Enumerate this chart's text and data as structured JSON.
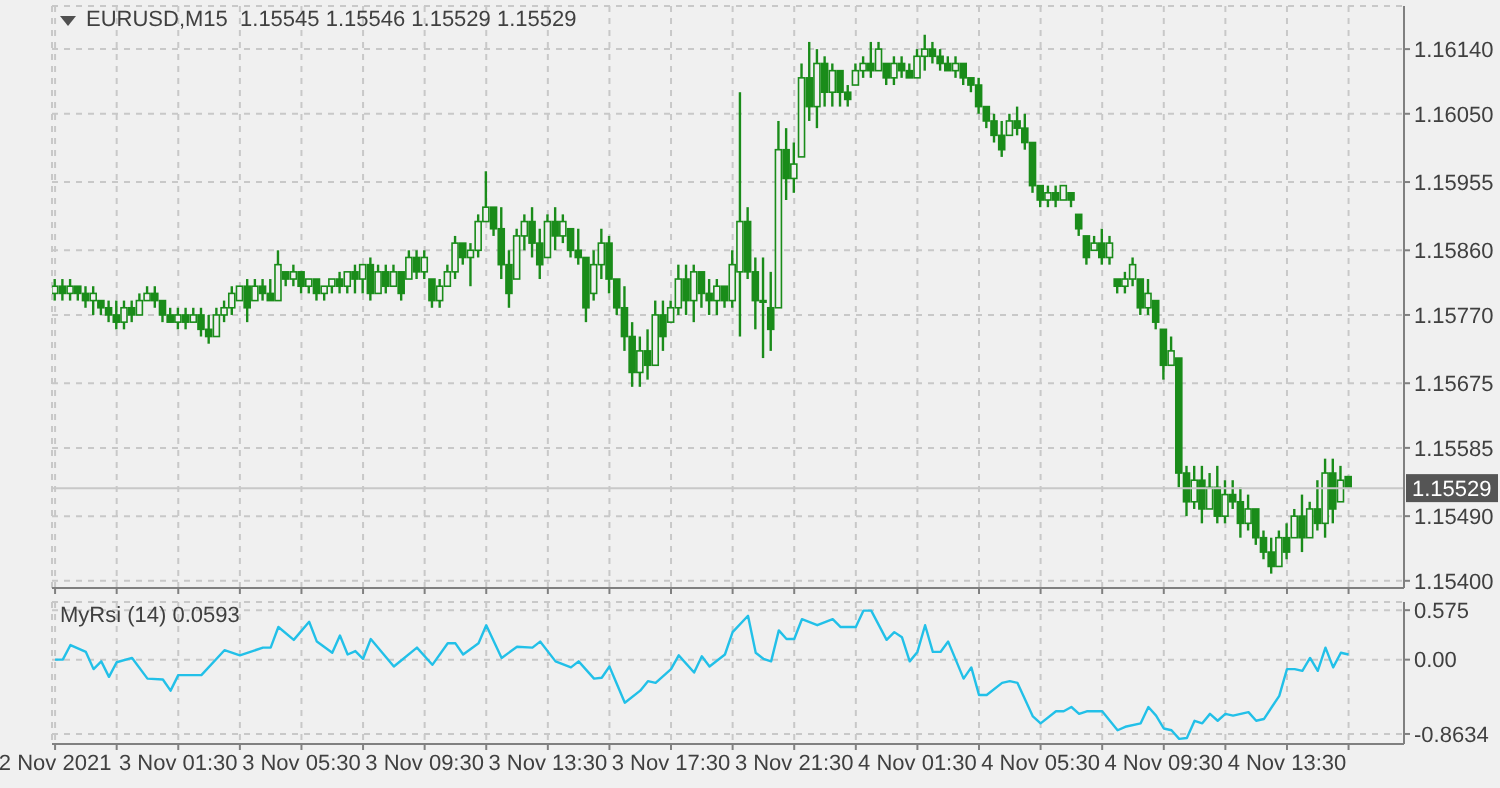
{
  "chart_data": [
    {
      "type": "candlestick",
      "title": "EURUSD,M15  1.15545 1.15546 1.15529 1.15529",
      "color": "#1a8c1a",
      "x": [
        "2021-11-02T21:30",
        "2021-11-02T21:45",
        "2021-11-02T22:00",
        "2021-11-02T22:15",
        "2021-11-02T22:30",
        "2021-11-02T22:45",
        "2021-11-02T23:00",
        "2021-11-02T23:15",
        "2021-11-02T23:30",
        "2021-11-02T23:45",
        "2021-11-03T00:00",
        "2021-11-03T00:15",
        "2021-11-03T00:30",
        "2021-11-03T00:45",
        "2021-11-03T01:00",
        "2021-11-03T01:15",
        "2021-11-03T01:30",
        "2021-11-03T01:45",
        "2021-11-03T02:00",
        "2021-11-03T02:15",
        "2021-11-03T02:30",
        "2021-11-03T02:45",
        "2021-11-03T03:00",
        "2021-11-03T03:15",
        "2021-11-03T03:30",
        "2021-11-03T03:45",
        "2021-11-03T04:00",
        "2021-11-03T04:15",
        "2021-11-03T04:30",
        "2021-11-03T04:45",
        "2021-11-03T05:00",
        "2021-11-03T05:15",
        "2021-11-03T05:30",
        "2021-11-03T05:45",
        "2021-11-03T06:00",
        "2021-11-03T06:15",
        "2021-11-03T06:30",
        "2021-11-03T06:45",
        "2021-11-03T07:00",
        "2021-11-03T07:15",
        "2021-11-03T07:30",
        "2021-11-03T07:45",
        "2021-11-03T08:00",
        "2021-11-03T08:15",
        "2021-11-03T08:30",
        "2021-11-03T08:45",
        "2021-11-03T09:00",
        "2021-11-03T09:15",
        "2021-11-03T09:30",
        "2021-11-03T09:45",
        "2021-11-03T10:00",
        "2021-11-03T10:15",
        "2021-11-03T10:30",
        "2021-11-03T10:45",
        "2021-11-03T11:00",
        "2021-11-03T11:15",
        "2021-11-03T11:30",
        "2021-11-03T11:45",
        "2021-11-03T12:00",
        "2021-11-03T12:15",
        "2021-11-03T12:30",
        "2021-11-03T12:45",
        "2021-11-03T13:00",
        "2021-11-03T13:15",
        "2021-11-03T13:30",
        "2021-11-03T13:45",
        "2021-11-03T14:00",
        "2021-11-03T14:15",
        "2021-11-03T14:30",
        "2021-11-03T14:45",
        "2021-11-03T15:00",
        "2021-11-03T15:15",
        "2021-11-03T15:30",
        "2021-11-03T15:45",
        "2021-11-03T16:00",
        "2021-11-03T16:15",
        "2021-11-03T16:30",
        "2021-11-03T16:45",
        "2021-11-03T17:00",
        "2021-11-03T17:15",
        "2021-11-03T17:30",
        "2021-11-03T17:45",
        "2021-11-03T18:00",
        "2021-11-03T18:15",
        "2021-11-03T18:30",
        "2021-11-03T18:45",
        "2021-11-03T19:00",
        "2021-11-03T19:15",
        "2021-11-03T19:30",
        "2021-11-03T19:45",
        "2021-11-03T20:00",
        "2021-11-03T20:15",
        "2021-11-03T20:30",
        "2021-11-03T20:45",
        "2021-11-03T21:00",
        "2021-11-03T21:15",
        "2021-11-03T21:30",
        "2021-11-03T21:45",
        "2021-11-03T22:00",
        "2021-11-03T22:15",
        "2021-11-03T22:30",
        "2021-11-03T22:45",
        "2021-11-03T23:00",
        "2021-11-03T23:15",
        "2021-11-03T23:30",
        "2021-11-03T23:45",
        "2021-11-04T00:00",
        "2021-11-04T00:15",
        "2021-11-04T00:30",
        "2021-11-04T00:45",
        "2021-11-04T01:00",
        "2021-11-04T01:15",
        "2021-11-04T01:30",
        "2021-11-04T01:45",
        "2021-11-04T02:00",
        "2021-11-04T02:15",
        "2021-11-04T02:30",
        "2021-11-04T02:45",
        "2021-11-04T03:00",
        "2021-11-04T03:15",
        "2021-11-04T03:30",
        "2021-11-04T03:45",
        "2021-11-04T04:00",
        "2021-11-04T04:15",
        "2021-11-04T04:30",
        "2021-11-04T04:45",
        "2021-11-04T05:00",
        "2021-11-04T05:15",
        "2021-11-04T05:30",
        "2021-11-04T05:45",
        "2021-11-04T06:00",
        "2021-11-04T06:15",
        "2021-11-04T06:30",
        "2021-11-04T06:45",
        "2021-11-04T07:00",
        "2021-11-04T07:15",
        "2021-11-04T07:30",
        "2021-11-04T07:45",
        "2021-11-04T08:00",
        "2021-11-04T08:15",
        "2021-11-04T08:30",
        "2021-11-04T08:45",
        "2021-11-04T09:00",
        "2021-11-04T09:15",
        "2021-11-04T09:30",
        "2021-11-04T09:45",
        "2021-11-04T10:00",
        "2021-11-04T10:15",
        "2021-11-04T10:30",
        "2021-11-04T10:45",
        "2021-11-04T11:00",
        "2021-11-04T11:15",
        "2021-11-04T11:30",
        "2021-11-04T11:45",
        "2021-11-04T12:00",
        "2021-11-04T12:15",
        "2021-11-04T12:30",
        "2021-11-04T12:45",
        "2021-11-04T13:00",
        "2021-11-04T13:15",
        "2021-11-04T13:30",
        "2021-11-04T13:45",
        "2021-11-04T14:00",
        "2021-11-04T14:15",
        "2021-11-04T14:30",
        "2021-11-04T14:45",
        "2021-11-04T15:00",
        "2021-11-04T15:15",
        "2021-11-04T15:30"
      ],
      "ohlc": [
        [
          1.158,
          1.1582,
          1.1579,
          1.1581
        ],
        [
          1.1581,
          1.1582,
          1.1579,
          1.158
        ],
        [
          1.158,
          1.1582,
          1.1579,
          1.1581
        ],
        [
          1.1581,
          1.1581,
          1.1579,
          1.158
        ],
        [
          1.158,
          1.1581,
          1.1578,
          1.1579
        ],
        [
          1.1579,
          1.1581,
          1.1577,
          1.158
        ],
        [
          1.1579,
          1.1579,
          1.1577,
          1.1578
        ],
        [
          1.1578,
          1.1579,
          1.1576,
          1.1577
        ],
        [
          1.1577,
          1.1579,
          1.1575,
          1.1576
        ],
        [
          1.1576,
          1.1579,
          1.1575,
          1.1578
        ],
        [
          1.1578,
          1.1579,
          1.1576,
          1.1577
        ],
        [
          1.1577,
          1.158,
          1.1577,
          1.1579
        ],
        [
          1.1579,
          1.1581,
          1.1579,
          1.158
        ],
        [
          1.158,
          1.1581,
          1.1578,
          1.1579
        ],
        [
          1.1579,
          1.1579,
          1.1576,
          1.1577
        ],
        [
          1.1577,
          1.1578,
          1.1576,
          1.1576
        ],
        [
          1.1576,
          1.1578,
          1.1575,
          1.1577
        ],
        [
          1.1577,
          1.1578,
          1.1575,
          1.1576
        ],
        [
          1.1576,
          1.1578,
          1.1576,
          1.1577
        ],
        [
          1.1577,
          1.1578,
          1.1574,
          1.1575
        ],
        [
          1.1575,
          1.1577,
          1.1573,
          1.1574
        ],
        [
          1.1574,
          1.1578,
          1.1574,
          1.1577
        ],
        [
          1.1577,
          1.1579,
          1.1576,
          1.1578
        ],
        [
          1.1578,
          1.1581,
          1.1577,
          1.158
        ],
        [
          1.1579,
          1.1581,
          1.1579,
          1.1581
        ],
        [
          1.1581,
          1.1582,
          1.1576,
          1.1578
        ],
        [
          1.1579,
          1.1582,
          1.1579,
          1.1581
        ],
        [
          1.1581,
          1.1582,
          1.1579,
          1.158
        ],
        [
          1.158,
          1.1582,
          1.1579,
          1.1579
        ],
        [
          1.1579,
          1.1586,
          1.1579,
          1.1584
        ],
        [
          1.1583,
          1.1583,
          1.1581,
          1.1582
        ],
        [
          1.1582,
          1.1584,
          1.1581,
          1.1583
        ],
        [
          1.1583,
          1.1583,
          1.158,
          1.1581
        ],
        [
          1.1581,
          1.1582,
          1.158,
          1.1582
        ],
        [
          1.1582,
          1.1582,
          1.1579,
          1.158
        ],
        [
          1.158,
          1.1581,
          1.1579,
          1.1581
        ],
        [
          1.1581,
          1.1582,
          1.158,
          1.1582
        ],
        [
          1.1582,
          1.1583,
          1.158,
          1.1581
        ],
        [
          1.1581,
          1.1583,
          1.158,
          1.1583
        ],
        [
          1.1583,
          1.1584,
          1.158,
          1.1582
        ],
        [
          1.1582,
          1.1584,
          1.158,
          1.1584
        ],
        [
          1.1584,
          1.1585,
          1.1579,
          1.158
        ],
        [
          1.158,
          1.1584,
          1.158,
          1.1583
        ],
        [
          1.1583,
          1.1584,
          1.158,
          1.1581
        ],
        [
          1.1581,
          1.1584,
          1.1581,
          1.1583
        ],
        [
          1.1583,
          1.1583,
          1.1579,
          1.158
        ],
        [
          1.1582,
          1.1586,
          1.1582,
          1.1585
        ],
        [
          1.1585,
          1.1586,
          1.1582,
          1.1583
        ],
        [
          1.1583,
          1.1586,
          1.1582,
          1.1585
        ],
        [
          1.1582,
          1.1582,
          1.1578,
          1.1579
        ],
        [
          1.1579,
          1.1582,
          1.1578,
          1.1581
        ],
        [
          1.1581,
          1.1584,
          1.1581,
          1.1583
        ],
        [
          1.1583,
          1.1588,
          1.1582,
          1.1587
        ],
        [
          1.1587,
          1.1587,
          1.1584,
          1.1585
        ],
        [
          1.1585,
          1.1587,
          1.1581,
          1.1586
        ],
        [
          1.1586,
          1.1591,
          1.1585,
          1.159
        ],
        [
          1.159,
          1.1597,
          1.159,
          1.1592
        ],
        [
          1.1592,
          1.1592,
          1.1588,
          1.1589
        ],
        [
          1.1589,
          1.1592,
          1.1582,
          1.1584
        ],
        [
          1.1584,
          1.1586,
          1.1578,
          1.158
        ],
        [
          1.1582,
          1.1589,
          1.1582,
          1.1588
        ],
        [
          1.1588,
          1.1591,
          1.1586,
          1.159
        ],
        [
          1.159,
          1.1592,
          1.1585,
          1.1587
        ],
        [
          1.1587,
          1.1589,
          1.1582,
          1.1584
        ],
        [
          1.1585,
          1.1591,
          1.1585,
          1.159
        ],
        [
          1.159,
          1.1592,
          1.1586,
          1.1588
        ],
        [
          1.1588,
          1.1591,
          1.1587,
          1.159
        ],
        [
          1.1589,
          1.1589,
          1.1585,
          1.1586
        ],
        [
          1.1586,
          1.1589,
          1.1584,
          1.1585
        ],
        [
          1.1585,
          1.1585,
          1.1576,
          1.1578
        ],
        [
          1.158,
          1.1586,
          1.1579,
          1.1584
        ],
        [
          1.1584,
          1.1589,
          1.1582,
          1.1587
        ],
        [
          1.1587,
          1.1588,
          1.158,
          1.1582
        ],
        [
          1.1582,
          1.1582,
          1.1577,
          1.1578
        ],
        [
          1.1578,
          1.1581,
          1.1572,
          1.1574
        ],
        [
          1.1574,
          1.1576,
          1.1567,
          1.1569
        ],
        [
          1.1569,
          1.1574,
          1.1567,
          1.1572
        ],
        [
          1.1572,
          1.1575,
          1.1568,
          1.157
        ],
        [
          1.157,
          1.1579,
          1.157,
          1.1577
        ],
        [
          1.1577,
          1.1579,
          1.1572,
          1.1574
        ],
        [
          1.1576,
          1.1579,
          1.1576,
          1.1578
        ],
        [
          1.1578,
          1.1584,
          1.1577,
          1.1582
        ],
        [
          1.1582,
          1.1584,
          1.1577,
          1.1579
        ],
        [
          1.1579,
          1.1584,
          1.1576,
          1.1583
        ],
        [
          1.1583,
          1.1583,
          1.1578,
          1.158
        ],
        [
          1.158,
          1.1582,
          1.1577,
          1.1579
        ],
        [
          1.1579,
          1.1582,
          1.1577,
          1.1581
        ],
        [
          1.1581,
          1.1581,
          1.1578,
          1.1579
        ],
        [
          1.1579,
          1.1586,
          1.1578,
          1.1584
        ],
        [
          1.1583,
          1.1608,
          1.1574,
          1.159
        ],
        [
          1.159,
          1.1592,
          1.1582,
          1.1583
        ],
        [
          1.1583,
          1.1585,
          1.1575,
          1.1579
        ],
        [
          1.1579,
          1.1585,
          1.1571,
          1.1579
        ],
        [
          1.1578,
          1.1583,
          1.1572,
          1.1575
        ],
        [
          1.1578,
          1.1604,
          1.1578,
          1.16
        ],
        [
          1.16,
          1.1603,
          1.1593,
          1.1596
        ],
        [
          1.1596,
          1.1601,
          1.1594,
          1.1598
        ],
        [
          1.1599,
          1.1612,
          1.1599,
          1.161
        ],
        [
          1.161,
          1.1615,
          1.1604,
          1.1606
        ],
        [
          1.1606,
          1.1614,
          1.1603,
          1.1612
        ],
        [
          1.1612,
          1.1613,
          1.1606,
          1.1608
        ],
        [
          1.1608,
          1.1612,
          1.1606,
          1.1611
        ],
        [
          1.1611,
          1.1611,
          1.1606,
          1.1608
        ],
        [
          1.1608,
          1.1609,
          1.1606,
          1.1607
        ],
        [
          1.1609,
          1.1612,
          1.1609,
          1.1611
        ],
        [
          1.1611,
          1.1613,
          1.161,
          1.1612
        ],
        [
          1.1612,
          1.1615,
          1.161,
          1.1611
        ],
        [
          1.1611,
          1.1615,
          1.1611,
          1.1614
        ],
        [
          1.1612,
          1.1612,
          1.1609,
          1.161
        ],
        [
          1.161,
          1.1613,
          1.1609,
          1.1612
        ],
        [
          1.1612,
          1.1613,
          1.161,
          1.1611
        ],
        [
          1.1611,
          1.1612,
          1.161,
          1.161
        ],
        [
          1.161,
          1.1614,
          1.161,
          1.1613
        ],
        [
          1.1613,
          1.1616,
          1.1611,
          1.1614
        ],
        [
          1.1614,
          1.1615,
          1.1612,
          1.1613
        ],
        [
          1.1613,
          1.1614,
          1.1611,
          1.1612
        ],
        [
          1.1612,
          1.1613,
          1.1611,
          1.1611
        ],
        [
          1.1611,
          1.1613,
          1.161,
          1.1612
        ],
        [
          1.1612,
          1.1612,
          1.1609,
          1.161
        ],
        [
          1.161,
          1.161,
          1.1608,
          1.1609
        ],
        [
          1.1609,
          1.161,
          1.1605,
          1.1606
        ],
        [
          1.1606,
          1.1606,
          1.1603,
          1.1604
        ],
        [
          1.1604,
          1.1605,
          1.1601,
          1.1602
        ],
        [
          1.1602,
          1.1604,
          1.1599,
          1.16
        ],
        [
          1.1602,
          1.1605,
          1.1602,
          1.1604
        ],
        [
          1.1604,
          1.1606,
          1.1602,
          1.1603
        ],
        [
          1.1603,
          1.1605,
          1.16,
          1.1601
        ],
        [
          1.1601,
          1.1601,
          1.1594,
          1.1595
        ],
        [
          1.1595,
          1.1595,
          1.1592,
          1.1593
        ],
        [
          1.1593,
          1.1595,
          1.1592,
          1.1594
        ],
        [
          1.1594,
          1.1595,
          1.1592,
          1.1593
        ],
        [
          1.1593,
          1.1595,
          1.1593,
          1.1595
        ],
        [
          1.1594,
          1.1594,
          1.1592,
          1.1593
        ],
        [
          1.1591,
          1.1591,
          1.1588,
          1.1589
        ],
        [
          1.1588,
          1.1588,
          1.1584,
          1.1585
        ],
        [
          1.1586,
          1.1588,
          1.1586,
          1.1587
        ],
        [
          1.1587,
          1.1589,
          1.1584,
          1.1585
        ],
        [
          1.1585,
          1.1588,
          1.1584,
          1.1587
        ],
        [
          1.1582,
          1.1582,
          1.158,
          1.1581
        ],
        [
          1.1581,
          1.1583,
          1.158,
          1.1582
        ],
        [
          1.1582,
          1.1585,
          1.1581,
          1.1584
        ],
        [
          1.1582,
          1.1582,
          1.1577,
          1.1578
        ],
        [
          1.1578,
          1.1582,
          1.1577,
          1.158
        ],
        [
          1.1579,
          1.1579,
          1.1575,
          1.1576
        ],
        [
          1.1575,
          1.1575,
          1.1568,
          1.157
        ],
        [
          1.157,
          1.1574,
          1.157,
          1.1572
        ],
        [
          1.1571,
          1.1571,
          1.1553,
          1.1555
        ],
        [
          1.1555,
          1.1556,
          1.1549,
          1.1551
        ],
        [
          1.1551,
          1.1556,
          1.155,
          1.1554
        ],
        [
          1.1554,
          1.1556,
          1.1548,
          1.155
        ],
        [
          1.155,
          1.1555,
          1.155,
          1.1553
        ],
        [
          1.1553,
          1.1556,
          1.1548,
          1.1549
        ],
        [
          1.1549,
          1.1554,
          1.1548,
          1.1552
        ],
        [
          1.1552,
          1.1554,
          1.155,
          1.1551
        ],
        [
          1.1551,
          1.1553,
          1.1546,
          1.1548
        ],
        [
          1.1548,
          1.1552,
          1.1547,
          1.155
        ],
        [
          1.155,
          1.155,
          1.1545,
          1.1546
        ],
        [
          1.1546,
          1.1547,
          1.1543,
          1.1544
        ],
        [
          1.1544,
          1.1546,
          1.1541,
          1.1542
        ],
        [
          1.1542,
          1.1547,
          1.1542,
          1.1546
        ],
        [
          1.1546,
          1.1548,
          1.1543,
          1.1544
        ],
        [
          1.1546,
          1.155,
          1.1546,
          1.1549
        ],
        [
          1.1549,
          1.1552,
          1.1544,
          1.1546
        ],
        [
          1.1546,
          1.1551,
          1.1546,
          1.155
        ],
        [
          1.155,
          1.1554,
          1.1547,
          1.1548
        ],
        [
          1.1548,
          1.1557,
          1.1546,
          1.1555
        ],
        [
          1.1555,
          1.1557,
          1.1548,
          1.155
        ],
        [
          1.1551,
          1.1556,
          1.1551,
          1.1554
        ],
        [
          1.15545,
          1.15546,
          1.15529,
          1.15529
        ]
      ],
      "xlim": [
        "2021-11-02T21:24",
        "2021-11-04T17:18"
      ],
      "xticks": [
        {
          "value": "2021-11-02T21:30",
          "label": null
        },
        {
          "value": "2021-11-02T23:30",
          "label": null
        },
        {
          "value": "2021-11-03T01:30",
          "label": null
        },
        {
          "value": "2021-11-03T03:30",
          "label": null
        },
        {
          "value": "2021-11-03T05:30",
          "label": null
        },
        {
          "value": "2021-11-03T07:30",
          "label": null
        },
        {
          "value": "2021-11-03T09:30",
          "label": null
        },
        {
          "value": "2021-11-03T11:30",
          "label": null
        },
        {
          "value": "2021-11-03T13:30",
          "label": null
        },
        {
          "value": "2021-11-03T15:30",
          "label": null
        },
        {
          "value": "2021-11-03T17:30",
          "label": null
        },
        {
          "value": "2021-11-03T19:30",
          "label": null
        },
        {
          "value": "2021-11-03T21:30",
          "label": null
        },
        {
          "value": "2021-11-03T23:30",
          "label": null
        },
        {
          "value": "2021-11-04T01:30",
          "label": null
        },
        {
          "value": "2021-11-04T03:30",
          "label": null
        },
        {
          "value": "2021-11-04T05:30",
          "label": null
        },
        {
          "value": "2021-11-04T07:30",
          "label": null
        },
        {
          "value": "2021-11-04T09:30",
          "label": null
        },
        {
          "value": "2021-11-04T11:30",
          "label": null
        },
        {
          "value": "2021-11-04T13:30",
          "label": null
        },
        {
          "value": "2021-11-04T15:30",
          "label": null
        }
      ],
      "ylim": [
        1.1539,
        1.162
      ],
      "yticks": [
        {
          "value": 1.154,
          "label": "1.15400"
        },
        {
          "value": 1.1549,
          "label": "1.15490"
        },
        {
          "value": 1.15585,
          "label": "1.15585"
        },
        {
          "value": 1.15675,
          "label": "1.15675"
        },
        {
          "value": 1.1577,
          "label": "1.15770"
        },
        {
          "value": 1.1586,
          "label": "1.15860"
        },
        {
          "value": 1.15955,
          "label": "1.15955"
        },
        {
          "value": 1.1605,
          "label": "1.16050"
        },
        {
          "value": 1.1614,
          "label": "1.16140"
        }
      ],
      "ref_lines": [
        {
          "axis": "y",
          "value": 1.15529,
          "label": "1.15529",
          "color": "#c8c8c8"
        }
      ],
      "grid": true,
      "tick_labels": "y"
    },
    {
      "type": "line",
      "title": "MyRsi (14) 0.0593",
      "color": "#22c0e8",
      "x": [
        "2021-11-02T21:30",
        "2021-11-02T21:45",
        "2021-11-02T22:00",
        "2021-11-02T22:30",
        "2021-11-02T22:45",
        "2021-11-02T23:00",
        "2021-11-02T23:15",
        "2021-11-02T23:30",
        "2021-11-03T00:00",
        "2021-11-03T00:30",
        "2021-11-03T01:00",
        "2021-11-03T01:15",
        "2021-11-03T01:30",
        "2021-11-03T02:15",
        "2021-11-03T03:00",
        "2021-11-03T03:30",
        "2021-11-03T04:15",
        "2021-11-03T04:30",
        "2021-11-03T04:45",
        "2021-11-03T05:15",
        "2021-11-03T05:45",
        "2021-11-03T06:00",
        "2021-11-03T06:30",
        "2021-11-03T06:45",
        "2021-11-03T07:00",
        "2021-11-03T07:15",
        "2021-11-03T07:30",
        "2021-11-03T07:45",
        "2021-11-03T08:30",
        "2021-11-03T09:15",
        "2021-11-03T09:45",
        "2021-11-03T10:15",
        "2021-11-03T10:30",
        "2021-11-03T10:45",
        "2021-11-03T11:15",
        "2021-11-03T11:30",
        "2021-11-03T12:00",
        "2021-11-03T12:30",
        "2021-11-03T13:00",
        "2021-11-03T13:15",
        "2021-11-03T13:45",
        "2021-11-03T14:15",
        "2021-11-03T14:30",
        "2021-11-03T15:00",
        "2021-11-03T15:15",
        "2021-11-03T15:30",
        "2021-11-03T16:00",
        "2021-11-03T16:30",
        "2021-11-03T16:45",
        "2021-11-03T17:00",
        "2021-11-03T17:30",
        "2021-11-03T17:45",
        "2021-11-03T18:15",
        "2021-11-03T18:30",
        "2021-11-03T18:45",
        "2021-11-03T19:15",
        "2021-11-03T19:30",
        "2021-11-03T20:00",
        "2021-11-03T20:15",
        "2021-11-03T20:30",
        "2021-11-03T20:45",
        "2021-11-03T21:00",
        "2021-11-03T21:15",
        "2021-11-03T21:30",
        "2021-11-03T21:45",
        "2021-11-03T22:15",
        "2021-11-03T22:45",
        "2021-11-03T23:00",
        "2021-11-03T23:30",
        "2021-11-03T23:45",
        "2021-11-04T00:00",
        "2021-11-04T00:30",
        "2021-11-04T00:45",
        "2021-11-04T01:00",
        "2021-11-04T01:15",
        "2021-11-04T01:30",
        "2021-11-04T01:45",
        "2021-11-04T02:00",
        "2021-11-04T02:15",
        "2021-11-04T02:30",
        "2021-11-04T03:00",
        "2021-11-04T03:15",
        "2021-11-04T03:30",
        "2021-11-04T03:45",
        "2021-11-04T04:15",
        "2021-11-04T04:30",
        "2021-11-04T04:45",
        "2021-11-04T05:15",
        "2021-11-04T05:30",
        "2021-11-04T06:00",
        "2021-11-04T06:15",
        "2021-11-04T06:30",
        "2021-11-04T06:45",
        "2021-11-04T07:00",
        "2021-11-04T07:30",
        "2021-11-04T08:00",
        "2021-11-04T08:15",
        "2021-11-04T08:45",
        "2021-11-04T09:00",
        "2021-11-04T09:15",
        "2021-11-04T09:30",
        "2021-11-04T09:45",
        "2021-11-04T10:00",
        "2021-11-04T10:15",
        "2021-11-04T10:30",
        "2021-11-04T10:45",
        "2021-11-04T11:00",
        "2021-11-04T11:15",
        "2021-11-04T11:30",
        "2021-11-04T11:45",
        "2021-11-04T12:15",
        "2021-11-04T12:30",
        "2021-11-04T12:45",
        "2021-11-04T13:15",
        "2021-11-04T13:30",
        "2021-11-04T13:45",
        "2021-11-04T14:00",
        "2021-11-04T14:15",
        "2021-11-04T14:30",
        "2021-11-04T14:45",
        "2021-11-04T15:00",
        "2021-11-04T15:15",
        "2021-11-04T15:30"
      ],
      "values": [
        0,
        0,
        0.17,
        0.09,
        -0.11,
        -0.02,
        -0.2,
        -0.03,
        0.02,
        -0.22,
        -0.23,
        -0.36,
        -0.18,
        -0.18,
        0.11,
        0.05,
        0.14,
        0.14,
        0.38,
        0.23,
        0.44,
        0.21,
        0.08,
        0.28,
        0.06,
        0.1,
        0.01,
        0.24,
        -0.08,
        0.14,
        -0.06,
        0.19,
        0.19,
        0.06,
        0.19,
        0.4,
        0.02,
        0.15,
        0.14,
        0.21,
        -0.02,
        -0.09,
        -0.02,
        -0.22,
        -0.21,
        -0.08,
        -0.5,
        -0.36,
        -0.25,
        -0.27,
        -0.11,
        0.05,
        -0.15,
        0.04,
        -0.08,
        0.06,
        0.32,
        0.51,
        0.08,
        0.01,
        -0.02,
        0.34,
        0.24,
        0.24,
        0.47,
        0.4,
        0.47,
        0.38,
        0.38,
        0.57,
        0.57,
        0.23,
        0.32,
        0.26,
        -0.02,
        0.09,
        0.4,
        0.09,
        0.09,
        0.21,
        -0.22,
        -0.09,
        -0.41,
        -0.41,
        -0.27,
        -0.25,
        -0.27,
        -0.66,
        -0.74,
        -0.6,
        -0.6,
        -0.55,
        -0.63,
        -0.6,
        -0.6,
        -0.82,
        -0.78,
        -0.74,
        -0.55,
        -0.65,
        -0.8,
        -0.82,
        -0.92,
        -0.91,
        -0.71,
        -0.74,
        -0.63,
        -0.71,
        -0.63,
        -0.65,
        -0.61,
        -0.71,
        -0.69,
        -0.42,
        -0.11,
        -0.11,
        -0.13,
        0.02,
        -0.13,
        0.14,
        -0.09,
        0.08,
        0.06
      ],
      "xlim": [
        "2021-11-02T21:24",
        "2021-11-04T17:18"
      ],
      "xticks": [
        {
          "value": "2021-11-02T21:30",
          "label": "2 Nov 2021"
        },
        {
          "value": "2021-11-02T23:30",
          "label": null
        },
        {
          "value": "2021-11-03T01:30",
          "label": "3 Nov 01:30"
        },
        {
          "value": "2021-11-03T03:30",
          "label": null
        },
        {
          "value": "2021-11-03T05:30",
          "label": "3 Nov 05:30"
        },
        {
          "value": "2021-11-03T07:30",
          "label": null
        },
        {
          "value": "2021-11-03T09:30",
          "label": "3 Nov 09:30"
        },
        {
          "value": "2021-11-03T11:30",
          "label": null
        },
        {
          "value": "2021-11-03T13:30",
          "label": "3 Nov 13:30"
        },
        {
          "value": "2021-11-03T15:30",
          "label": null
        },
        {
          "value": "2021-11-03T17:30",
          "label": "3 Nov 17:30"
        },
        {
          "value": "2021-11-03T19:30",
          "label": null
        },
        {
          "value": "2021-11-03T21:30",
          "label": "3 Nov 21:30"
        },
        {
          "value": "2021-11-03T23:30",
          "label": null
        },
        {
          "value": "2021-11-04T01:30",
          "label": "4 Nov 01:30"
        },
        {
          "value": "2021-11-04T03:30",
          "label": null
        },
        {
          "value": "2021-11-04T05:30",
          "label": "4 Nov 05:30"
        },
        {
          "value": "2021-11-04T07:30",
          "label": null
        },
        {
          "value": "2021-11-04T09:30",
          "label": "4 Nov 09:30"
        },
        {
          "value": "2021-11-04T11:30",
          "label": null
        },
        {
          "value": "2021-11-04T13:30",
          "label": "4 Nov 13:30"
        },
        {
          "value": "2021-11-04T15:30",
          "label": null
        }
      ],
      "ylim": [
        -0.98,
        0.67
      ],
      "yticks": [
        -0.8634,
        {
          "value": 0,
          "label": "0.00"
        },
        0.575
      ],
      "grid": true
    }
  ]
}
